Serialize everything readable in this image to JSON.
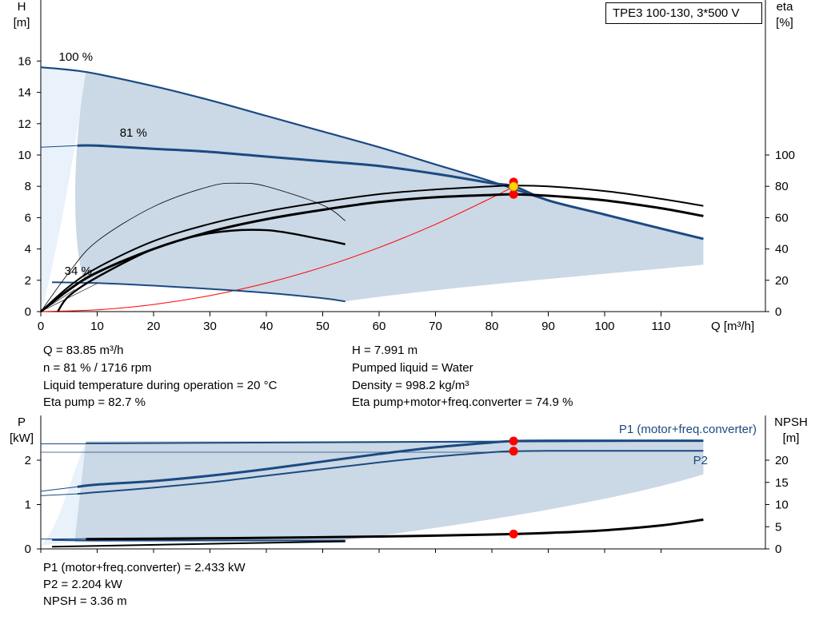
{
  "model": "TPE3 100-130, 3*500 V",
  "info": {
    "q": "Q = 83.85 m³/h",
    "h": "H = 7.991 m",
    "n": "n = 81 % / 1716 rpm",
    "liquid": "Pumped liquid = Water",
    "temp": "Liquid temperature during operation = 20 °C",
    "density": "Density = 998.2 kg/m³",
    "eta_pump": "Eta pump = 82.7 %",
    "eta_total": "Eta pump+motor+freq.converter = 74.9 %",
    "p1": "P1 (motor+freq.converter) = 2.433 kW",
    "p2": "P2 = 2.204 kW",
    "npsh": "NPSH = 3.36 m"
  },
  "colors": {
    "blue": "#1a4a82",
    "shade": "#cbd8e5",
    "light_shade": "#e9f2fb",
    "red": "#ff0000",
    "yellow": "#ffd200"
  },
  "chart_data": [
    {
      "type": "line",
      "title": "",
      "xlabel": "Q [m³/h]",
      "ylabel": "H [m]",
      "y2label": "eta [%]",
      "xlim": [
        0,
        120
      ],
      "ylim": [
        0,
        18
      ],
      "y2lim": [
        0,
        180
      ],
      "xticks": [
        "0",
        "10",
        "20",
        "30",
        "40",
        "50",
        "60",
        "70",
        "80",
        "90",
        "100",
        "110"
      ],
      "yticks": [
        "0",
        "2",
        "4",
        "6",
        "8",
        "10",
        "12",
        "14",
        "16"
      ],
      "y2ticks": [
        "0",
        "20",
        "40",
        "60",
        "80",
        "100"
      ],
      "series": [
        {
          "name": "100 %",
          "axis": "H",
          "x": [
            0,
            8,
            20,
            30,
            40,
            50,
            60,
            70,
            80,
            90,
            100,
            110,
            117.5
          ],
          "y": [
            15.6,
            15.3,
            14.4,
            13.5,
            12.5,
            11.5,
            10.5,
            9.4,
            8.3,
            7.1,
            6.2,
            5.3,
            4.65
          ]
        },
        {
          "name": "81 %",
          "axis": "H",
          "x": [
            6.5,
            10,
            20,
            30,
            40,
            50,
            60,
            70,
            80,
            84,
            90,
            100,
            110,
            117.5
          ],
          "y": [
            10.6,
            10.6,
            10.4,
            10.2,
            9.9,
            9.6,
            9.3,
            8.8,
            8.2,
            7.99,
            7.1,
            6.2,
            5.3,
            4.65
          ]
        },
        {
          "name": "34 %",
          "axis": "H",
          "x": [
            2,
            10,
            20,
            30,
            40,
            50,
            54
          ],
          "y": [
            1.88,
            1.82,
            1.66,
            1.45,
            1.2,
            0.85,
            0.65
          ]
        },
        {
          "name": "",
          "axis": "eta",
          "x": [
            0,
            5,
            10,
            20,
            30,
            40,
            50,
            60,
            70,
            80,
            84,
            90,
            100,
            110,
            117.5
          ],
          "y": [
            0,
            16,
            28,
            45,
            56,
            64,
            70,
            75,
            78,
            80,
            80.5,
            80,
            77,
            72,
            67.5
          ]
        },
        {
          "name": "",
          "axis": "eta",
          "x": [
            0,
            5,
            10,
            20,
            30,
            40,
            50,
            60,
            70,
            80,
            84,
            90,
            100,
            110,
            117.5
          ],
          "y": [
            0,
            14,
            25,
            40,
            51,
            59,
            65,
            70,
            73,
            74.5,
            74.9,
            74,
            71,
            66,
            61
          ]
        },
        {
          "name": "",
          "axis": "eta",
          "x": [
            3,
            5,
            10,
            20,
            30,
            40,
            50,
            54
          ],
          "y": [
            0,
            10,
            22,
            40,
            50,
            52,
            46,
            43
          ]
        },
        {
          "name": "",
          "axis": "eta",
          "x": [
            0,
            5,
            10,
            20,
            30,
            35,
            40,
            50,
            54
          ],
          "y": [
            0,
            25,
            45,
            67,
            80,
            82,
            80,
            68,
            58
          ]
        }
      ],
      "operating_point": {
        "x": 83.85,
        "y": 7.991,
        "eta_pump": 82.7,
        "eta_total": 74.9
      }
    },
    {
      "type": "line",
      "title": "",
      "xlabel": "",
      "ylabel": "P [kW]",
      "y2label": "NPSH [m]",
      "xlim": [
        0,
        120
      ],
      "ylim": [
        0,
        2.8
      ],
      "y2lim": [
        0,
        28
      ],
      "yticks": [
        "0",
        "1",
        "2"
      ],
      "y2ticks": [
        "0",
        "5",
        "10",
        "15",
        "20"
      ],
      "series": [
        {
          "name": "P1 (motor+freq.converter)",
          "axis": "P",
          "x": [
            6.5,
            10,
            20,
            30,
            40,
            50,
            60,
            70,
            80,
            84,
            90,
            100,
            110,
            117.5
          ],
          "y": [
            1.4,
            1.45,
            1.53,
            1.65,
            1.8,
            1.97,
            2.14,
            2.29,
            2.4,
            2.433,
            2.44,
            2.44,
            2.44,
            2.44
          ]
        },
        {
          "name": "P2",
          "axis": "P",
          "x": [
            6.5,
            10,
            20,
            30,
            40,
            50,
            60,
            70,
            80,
            84,
            90,
            100,
            110,
            117.5
          ],
          "y": [
            1.24,
            1.28,
            1.38,
            1.5,
            1.65,
            1.8,
            1.95,
            2.08,
            2.18,
            2.204,
            2.21,
            2.21,
            2.21,
            2.21
          ]
        },
        {
          "name": "",
          "axis": "P",
          "x": [
            2,
            10,
            20,
            30,
            40,
            54
          ],
          "y": [
            0.2,
            0.19,
            0.19,
            0.19,
            0.19,
            0.19
          ]
        },
        {
          "name": "NPSH",
          "axis": "NPSH",
          "x": [
            8,
            20,
            40,
            60,
            70,
            80,
            84,
            90,
            100,
            110,
            117.5
          ],
          "y": [
            2.2,
            2.3,
            2.5,
            2.8,
            3.0,
            3.25,
            3.36,
            3.6,
            4.2,
            5.3,
            6.6
          ]
        }
      ],
      "operating_point": {
        "x": 83.85,
        "p1": 2.433,
        "p2": 2.204,
        "npsh": 3.36
      }
    }
  ]
}
